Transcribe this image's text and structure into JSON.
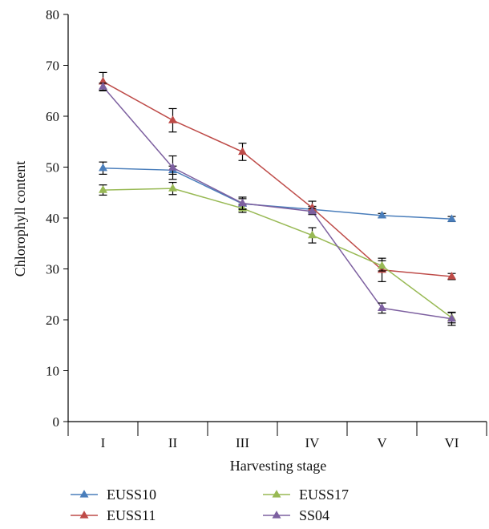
{
  "chart_data": {
    "type": "line",
    "xlabel": "Harvesting stage",
    "ylabel": "Chlorophyll content",
    "categories": [
      "I",
      "II",
      "III",
      "IV",
      "V",
      "VI"
    ],
    "ylim": [
      0,
      80
    ],
    "yticks": [
      0,
      10,
      20,
      30,
      40,
      50,
      60,
      70,
      80
    ],
    "grid": false,
    "legend_position": "bottom",
    "marker": "triangle",
    "series": [
      {
        "name": "EUSS10",
        "color": "#4a7ebb",
        "values": [
          49.8,
          49.4,
          42.8,
          41.7,
          40.5,
          39.8
        ],
        "errors": [
          1.2,
          0.8,
          1.0,
          0.6,
          0.4,
          0.5
        ]
      },
      {
        "name": "EUSS11",
        "color": "#be4b48",
        "values": [
          66.8,
          59.2,
          53.0,
          42.0,
          29.8,
          28.5
        ],
        "errors": [
          1.8,
          2.3,
          1.7,
          1.3,
          2.3,
          0.6
        ]
      },
      {
        "name": "EUSS17",
        "color": "#98b954",
        "values": [
          45.5,
          45.8,
          41.9,
          36.6,
          30.6,
          20.4
        ],
        "errors": [
          1.0,
          1.2,
          0.8,
          1.5,
          1.0,
          1.0
        ]
      },
      {
        "name": "SS04",
        "color": "#7d60a0",
        "values": [
          65.8,
          49.9,
          42.9,
          41.3,
          22.3,
          20.2
        ],
        "errors": [
          0.7,
          2.3,
          1.2,
          0.6,
          1.0,
          1.3
        ]
      }
    ]
  }
}
